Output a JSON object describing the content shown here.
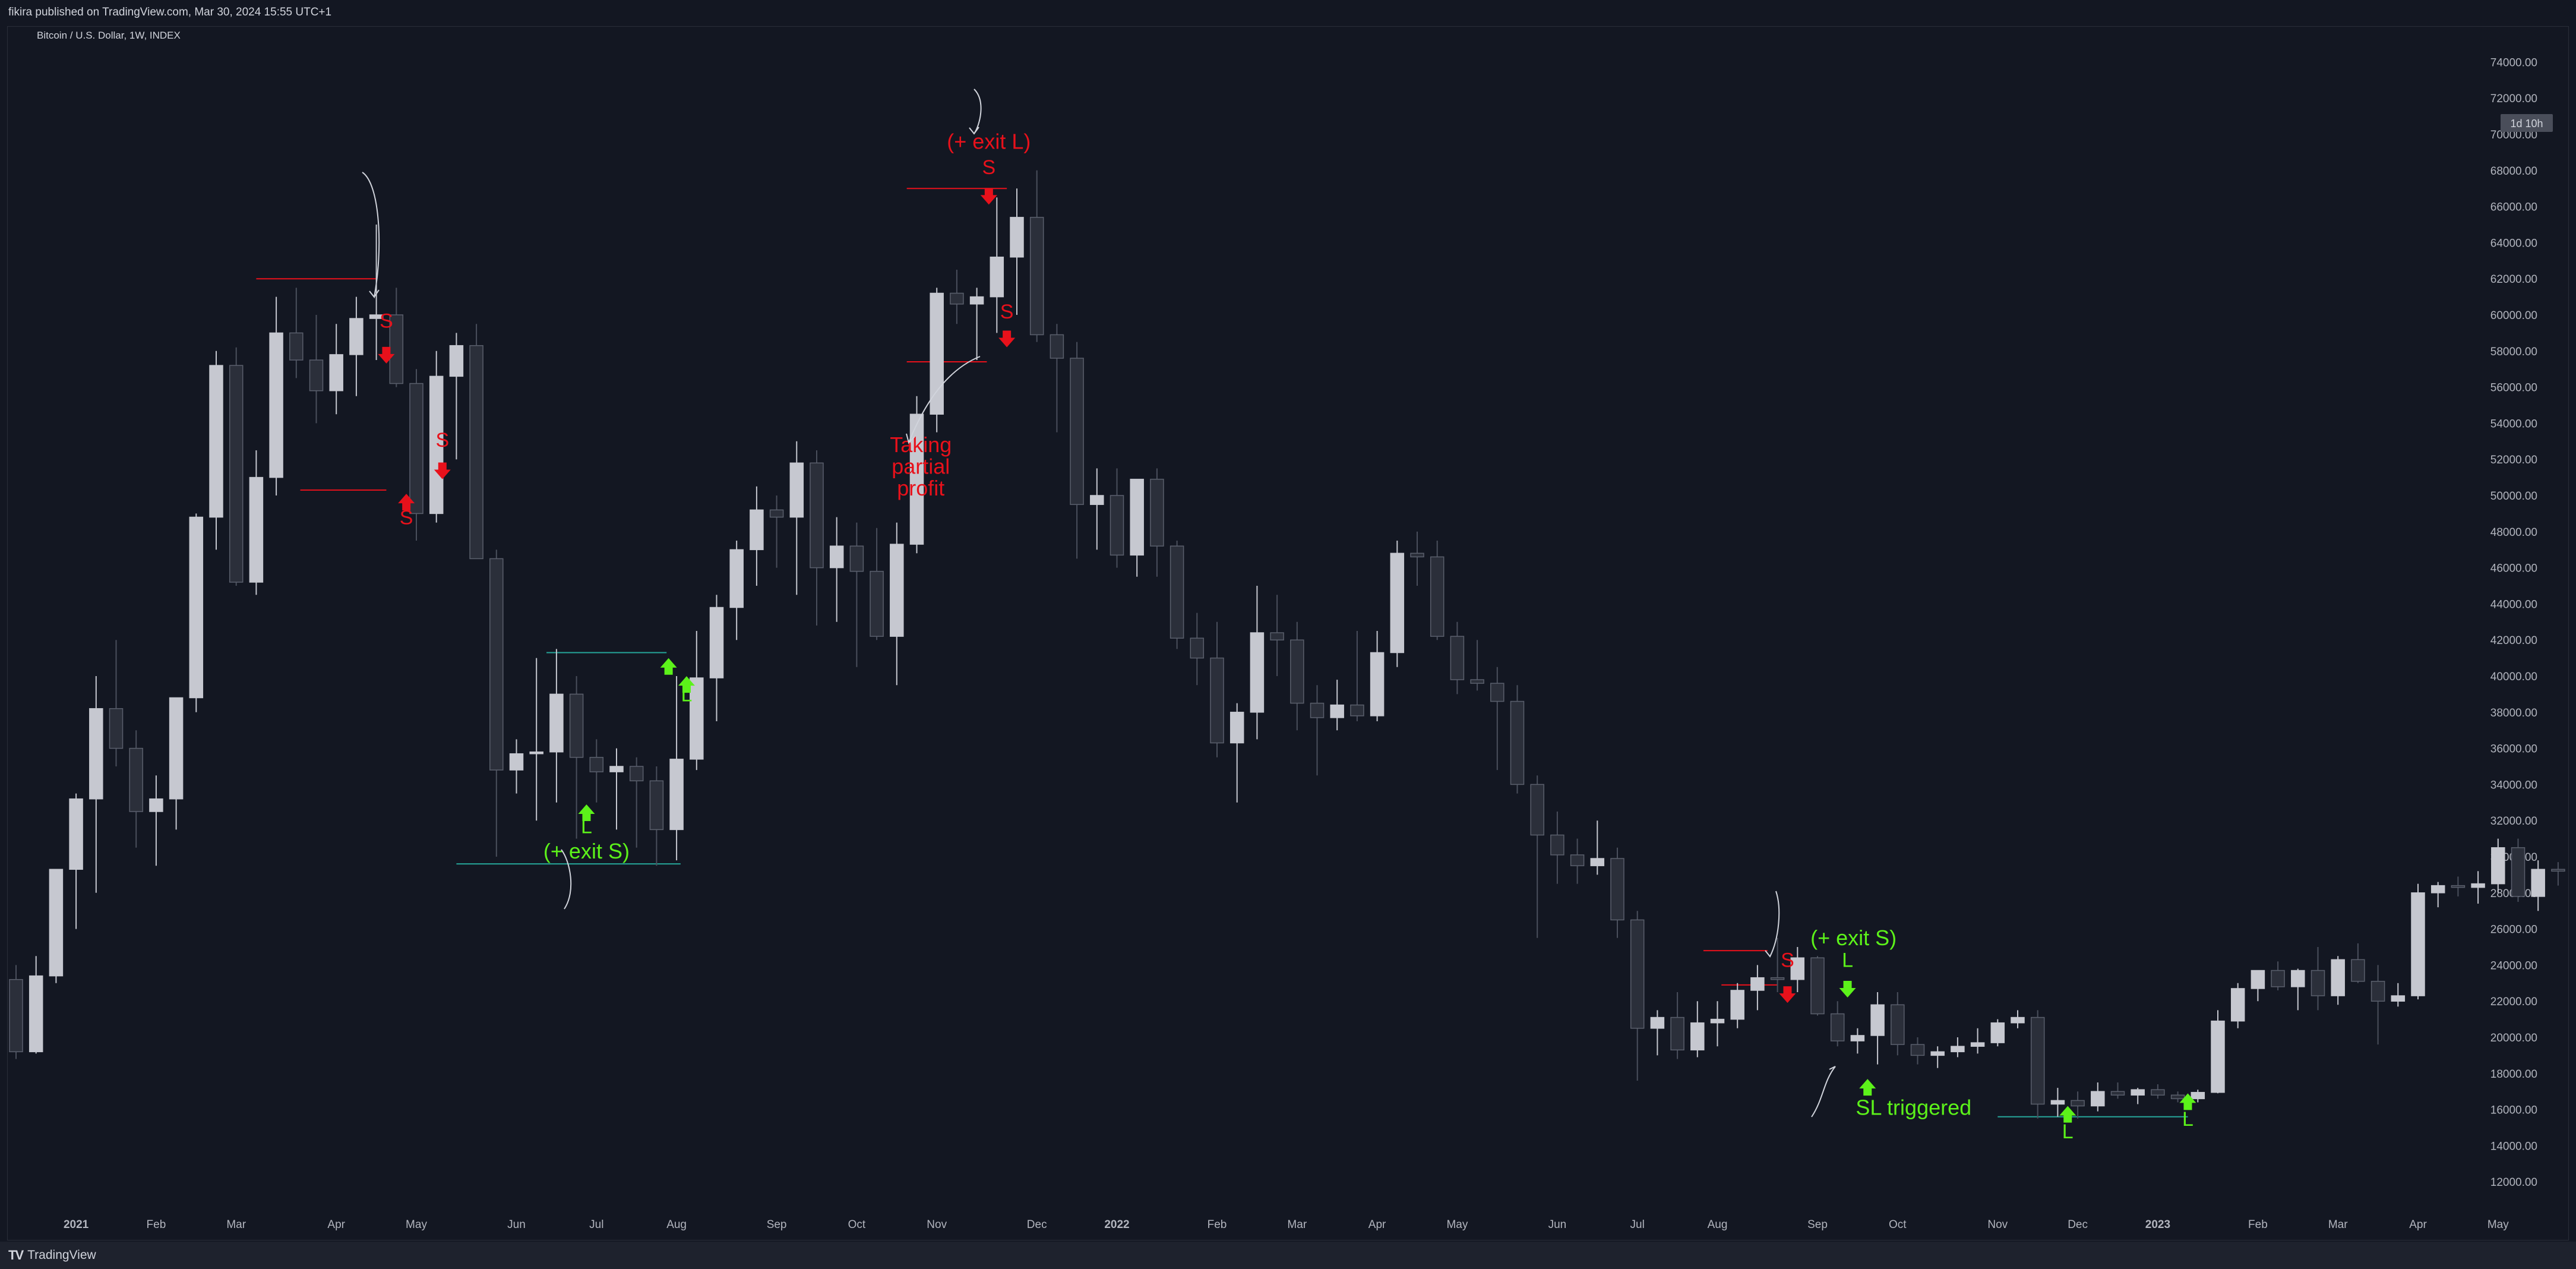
{
  "header": {
    "publish_info": "fikira published on TradingView.com, Mar 30, 2024 15:55 UTC+1"
  },
  "symbol": {
    "title": "Bitcoin / U.S. Dollar, 1W, INDEX"
  },
  "footer": {
    "brand": "TradingView"
  },
  "countdown_badge": "1d 10h",
  "colors": {
    "background": "#131722",
    "up_candle": "#c6c8d0",
    "down_candle": "#2b2f3a",
    "annotation_red": "#e8111b",
    "annotation_green": "#5cf21a"
  },
  "chart_data": {
    "type": "candlestick",
    "timeframe": "1W",
    "y_axis": {
      "min": 11000,
      "max": 75000,
      "ticks": [
        "74000.00",
        "72000.00",
        "70000.00",
        "68000.00",
        "66000.00",
        "64000.00",
        "62000.00",
        "60000.00",
        "58000.00",
        "56000.00",
        "54000.00",
        "52000.00",
        "50000.00",
        "48000.00",
        "46000.00",
        "44000.00",
        "42000.00",
        "40000.00",
        "38000.00",
        "36000.00",
        "34000.00",
        "32000.00",
        "30000.00",
        "28000.00",
        "26000.00",
        "24000.00",
        "22000.00",
        "20000.00",
        "18000.00",
        "16000.00",
        "14000.00",
        "12000.00"
      ]
    },
    "x_axis": {
      "labels": [
        {
          "label": "2021",
          "week": 3
        },
        {
          "label": "Feb",
          "week": 7
        },
        {
          "label": "Mar",
          "week": 11
        },
        {
          "label": "Apr",
          "week": 16
        },
        {
          "label": "May",
          "week": 20
        },
        {
          "label": "Jun",
          "week": 25
        },
        {
          "label": "Jul",
          "week": 29
        },
        {
          "label": "Aug",
          "week": 33
        },
        {
          "label": "Sep",
          "week": 38
        },
        {
          "label": "Oct",
          "week": 42
        },
        {
          "label": "Nov",
          "week": 46
        },
        {
          "label": "Dec",
          "week": 51
        },
        {
          "label": "2022",
          "week": 55
        },
        {
          "label": "Feb",
          "week": 60
        },
        {
          "label": "Mar",
          "week": 64
        },
        {
          "label": "Apr",
          "week": 68
        },
        {
          "label": "May",
          "week": 72
        },
        {
          "label": "Jun",
          "week": 77
        },
        {
          "label": "Jul",
          "week": 81
        },
        {
          "label": "Aug",
          "week": 85
        },
        {
          "label": "Sep",
          "week": 90
        },
        {
          "label": "Oct",
          "week": 94
        },
        {
          "label": "Nov",
          "week": 99
        },
        {
          "label": "Dec",
          "week": 103
        },
        {
          "label": "2023",
          "week": 107
        },
        {
          "label": "Feb",
          "week": 112
        },
        {
          "label": "Mar",
          "week": 116
        },
        {
          "label": "Apr",
          "week": 120
        },
        {
          "label": "May",
          "week": 124
        }
      ]
    },
    "candles": [
      [
        23200,
        24000,
        18800,
        19200
      ],
      [
        19200,
        24500,
        19100,
        23400
      ],
      [
        23400,
        29000,
        23000,
        29300
      ],
      [
        29300,
        33500,
        26000,
        33200
      ],
      [
        33200,
        40000,
        28000,
        38200
      ],
      [
        38200,
        42000,
        35000,
        36000
      ],
      [
        36000,
        37000,
        30500,
        32500
      ],
      [
        32500,
        34500,
        29500,
        33200
      ],
      [
        33200,
        38500,
        31500,
        38800
      ],
      [
        38800,
        49000,
        38000,
        48800
      ],
      [
        48800,
        58000,
        47000,
        57200
      ],
      [
        57200,
        58200,
        45000,
        45200
      ],
      [
        45200,
        52500,
        44500,
        51000
      ],
      [
        51000,
        61000,
        50000,
        59000
      ],
      [
        59000,
        61500,
        56500,
        57500
      ],
      [
        57500,
        60000,
        54000,
        55800
      ],
      [
        55800,
        59500,
        54500,
        57800
      ],
      [
        57800,
        61000,
        55500,
        59800
      ],
      [
        59800,
        65000,
        57500,
        60000
      ],
      [
        60000,
        61500,
        56000,
        56200
      ],
      [
        56200,
        57000,
        47500,
        49000
      ],
      [
        49000,
        58000,
        48500,
        56600
      ],
      [
        56600,
        59000,
        52000,
        58300
      ],
      [
        58300,
        59500,
        46500,
        46500
      ],
      [
        46500,
        47000,
        30000,
        34800
      ],
      [
        34800,
        36500,
        33500,
        35700
      ],
      [
        35700,
        41000,
        32000,
        35800
      ],
      [
        35800,
        41500,
        33000,
        39000
      ],
      [
        39000,
        40000,
        31000,
        35500
      ],
      [
        35500,
        36500,
        33000,
        34700
      ],
      [
        34700,
        36000,
        31500,
        35000
      ],
      [
        35000,
        35500,
        30500,
        34200
      ],
      [
        34200,
        35000,
        29500,
        31500
      ],
      [
        31500,
        40000,
        29800,
        35400
      ],
      [
        35400,
        42500,
        34800,
        39900
      ],
      [
        39900,
        44500,
        37500,
        43800
      ],
      [
        43800,
        47500,
        42000,
        47000
      ],
      [
        47000,
        50500,
        45000,
        49200
      ],
      [
        49200,
        50000,
        46000,
        48800
      ],
      [
        48800,
        53000,
        44500,
        51800
      ],
      [
        51800,
        52500,
        42800,
        46000
      ],
      [
        46000,
        48800,
        43000,
        47200
      ],
      [
        47200,
        48500,
        40500,
        45800
      ],
      [
        45800,
        48200,
        42000,
        42200
      ],
      [
        42200,
        48500,
        39500,
        47300
      ],
      [
        47300,
        55500,
        46800,
        54500
      ],
      [
        54500,
        61500,
        53500,
        61200
      ],
      [
        61200,
        62500,
        59500,
        60600
      ],
      [
        60600,
        61500,
        57500,
        61000
      ],
      [
        61000,
        66500,
        59000,
        63200
      ],
      [
        63200,
        67000,
        60000,
        65400
      ],
      [
        65400,
        68000,
        58500,
        58900
      ],
      [
        58900,
        59500,
        53500,
        57600
      ],
      [
        57600,
        58500,
        46500,
        49500
      ],
      [
        49500,
        51500,
        47000,
        50000
      ],
      [
        50000,
        51500,
        46000,
        46700
      ],
      [
        46700,
        50500,
        45500,
        50900
      ],
      [
        50900,
        51500,
        45500,
        47200
      ],
      [
        47200,
        47500,
        41500,
        42100
      ],
      [
        42100,
        43500,
        39500,
        41000
      ],
      [
        41000,
        43000,
        35500,
        36300
      ],
      [
        36300,
        38500,
        33000,
        38000
      ],
      [
        38000,
        45000,
        36500,
        42400
      ],
      [
        42400,
        44500,
        40000,
        42000
      ],
      [
        42000,
        43000,
        37000,
        38500
      ],
      [
        38500,
        39500,
        34500,
        37700
      ],
      [
        37700,
        39800,
        37000,
        38400
      ],
      [
        38400,
        42500,
        37500,
        37800
      ],
      [
        37800,
        42500,
        37500,
        41300
      ],
      [
        41300,
        47500,
        40500,
        46800
      ],
      [
        46800,
        48000,
        45000,
        46600
      ],
      [
        46600,
        47500,
        42000,
        42200
      ],
      [
        42200,
        43000,
        39000,
        39800
      ],
      [
        39800,
        42000,
        39200,
        39600
      ],
      [
        39600,
        40500,
        34800,
        38600
      ],
      [
        38600,
        39500,
        33500,
        34000
      ],
      [
        34000,
        34500,
        25500,
        31200
      ],
      [
        31200,
        32500,
        28500,
        30100
      ],
      [
        30100,
        31000,
        28500,
        29500
      ],
      [
        29500,
        32000,
        29000,
        29900
      ],
      [
        29900,
        30500,
        25500,
        26500
      ],
      [
        26500,
        27000,
        17600,
        20500
      ],
      [
        20500,
        21500,
        19000,
        21100
      ],
      [
        21100,
        22500,
        18800,
        19300
      ],
      [
        19300,
        22000,
        18900,
        20800
      ],
      [
        20800,
        22000,
        19500,
        21000
      ],
      [
        21000,
        23000,
        20500,
        22600
      ],
      [
        22600,
        24000,
        21500,
        23300
      ],
      [
        23300,
        25500,
        22500,
        23200
      ],
      [
        23200,
        25000,
        22500,
        24400
      ],
      [
        24400,
        24500,
        21200,
        21300
      ],
      [
        21300,
        22000,
        19500,
        19800
      ],
      [
        19800,
        20500,
        19100,
        20100
      ],
      [
        20100,
        22500,
        18500,
        21800
      ],
      [
        21800,
        22500,
        19000,
        19600
      ],
      [
        19600,
        20000,
        18500,
        19000
      ],
      [
        19000,
        19500,
        18300,
        19200
      ],
      [
        19200,
        20000,
        18900,
        19500
      ],
      [
        19500,
        20500,
        19100,
        19700
      ],
      [
        19700,
        21000,
        19500,
        20800
      ],
      [
        20800,
        21500,
        20500,
        21100
      ],
      [
        21100,
        21500,
        15500,
        16300
      ],
      [
        16300,
        17200,
        15600,
        16500
      ],
      [
        16500,
        17000,
        15500,
        16200
      ],
      [
        16200,
        17500,
        15900,
        17000
      ],
      [
        17000,
        17500,
        16600,
        16800
      ],
      [
        16800,
        17200,
        16300,
        17100
      ],
      [
        17100,
        17400,
        16600,
        16800
      ],
      [
        16800,
        17000,
        16400,
        16600
      ],
      [
        16600,
        17100,
        16400,
        16950
      ],
      [
        16950,
        21500,
        16900,
        20900
      ],
      [
        20900,
        23000,
        20500,
        22700
      ],
      [
        22700,
        23500,
        22000,
        23700
      ],
      [
        23700,
        24200,
        22600,
        22800
      ],
      [
        22800,
        23800,
        21500,
        23700
      ],
      [
        23700,
        25000,
        21500,
        22300
      ],
      [
        22300,
        24500,
        21800,
        24300
      ],
      [
        24300,
        25200,
        23000,
        23100
      ],
      [
        23100,
        24000,
        19600,
        22000
      ],
      [
        22000,
        23000,
        21700,
        22300
      ],
      [
        22300,
        28500,
        22100,
        28000
      ],
      [
        28000,
        28600,
        27200,
        28400
      ],
      [
        28400,
        28900,
        27800,
        28300
      ],
      [
        28300,
        29200,
        27400,
        28500
      ],
      [
        28500,
        31000,
        28000,
        30500
      ],
      [
        30500,
        31000,
        27500,
        27800
      ],
      [
        27800,
        29800,
        27000,
        29300
      ],
      [
        29300,
        29700,
        28400,
        29200
      ]
    ],
    "text_annotations": [
      {
        "text": "S",
        "color": "red",
        "week": 18.5,
        "price": 59300
      },
      {
        "text": "S",
        "color": "red",
        "week": 21.3,
        "price": 52700
      },
      {
        "text": "S",
        "color": "red",
        "week": 19.5,
        "price": 48400
      },
      {
        "text": "(+ exit L)",
        "color": "red",
        "week": 48.6,
        "price": 69200
      },
      {
        "text": "S",
        "color": "red",
        "week": 48.6,
        "price": 67800
      },
      {
        "text": "S",
        "color": "red",
        "week": 49.5,
        "price": 59800
      },
      {
        "text": "Taking",
        "color": "red",
        "week": 45.2,
        "price": 52400
      },
      {
        "text": "partial",
        "color": "red",
        "week": 45.2,
        "price": 51200
      },
      {
        "text": "profit",
        "color": "red",
        "week": 45.2,
        "price": 50000
      },
      {
        "text": "L",
        "color": "green",
        "week": 28.5,
        "price": 31300
      },
      {
        "text": "(+ exit S)",
        "color": "green",
        "week": 28.5,
        "price": 29900
      },
      {
        "text": "L",
        "color": "green",
        "week": 33.5,
        "price": 38600
      },
      {
        "text": "S",
        "color": "red",
        "week": 88.5,
        "price": 23900
      },
      {
        "text": "(+ exit S)",
        "color": "green",
        "week": 91.8,
        "price": 25100
      },
      {
        "text": "L",
        "color": "green",
        "week": 91.5,
        "price": 23900
      },
      {
        "text": "SL triggered",
        "color": "green",
        "week": 94.8,
        "price": 15700
      },
      {
        "text": "L",
        "color": "green",
        "week": 102.5,
        "price": 14400
      },
      {
        "text": "L",
        "color": "green",
        "week": 108.5,
        "price": 15100
      }
    ],
    "arrow_markers": [
      {
        "dir": "down",
        "color": "red",
        "week": 18.5,
        "price": 57700
      },
      {
        "dir": "down",
        "color": "red",
        "week": 21.3,
        "price": 51300
      },
      {
        "dir": "up",
        "color": "red",
        "week": 19.5,
        "price": 49700
      },
      {
        "dir": "down",
        "color": "red",
        "week": 48.6,
        "price": 66500
      },
      {
        "dir": "down",
        "color": "red",
        "week": 49.5,
        "price": 58600
      },
      {
        "dir": "up",
        "color": "green",
        "week": 28.5,
        "price": 32500
      },
      {
        "dir": "up",
        "color": "green",
        "week": 32.6,
        "price": 40600
      },
      {
        "dir": "up",
        "color": "green",
        "week": 33.5,
        "price": 39600
      },
      {
        "dir": "down",
        "color": "red",
        "week": 88.5,
        "price": 22300
      },
      {
        "dir": "down",
        "color": "green",
        "week": 91.5,
        "price": 22600
      },
      {
        "dir": "up",
        "color": "green",
        "week": 92.5,
        "price": 17300
      },
      {
        "dir": "up",
        "color": "green",
        "week": 102.5,
        "price": 15800
      },
      {
        "dir": "up",
        "color": "green",
        "week": 108.5,
        "price": 16500
      }
    ],
    "level_lines": [
      {
        "color": "#e8111b",
        "w0": 12,
        "w1": 18,
        "price": 62000
      },
      {
        "color": "#e8111b",
        "w0": 14.2,
        "w1": 18.5,
        "price": 50300
      },
      {
        "color": "#26a69a",
        "w0": 22,
        "w1": 33.2,
        "price": 29600
      },
      {
        "color": "#26a69a",
        "w0": 26.5,
        "w1": 32.5,
        "price": 41300
      },
      {
        "color": "#e8111b",
        "w0": 44.5,
        "w1": 49.5,
        "price": 67000
      },
      {
        "color": "#e8111b",
        "w0": 44.5,
        "w1": 48.5,
        "price": 57400
      },
      {
        "color": "#e8111b",
        "w0": 84.3,
        "w1": 87.5,
        "price": 24800
      },
      {
        "color": "#e8111b",
        "w0": 85.2,
        "w1": 88,
        "price": 22900
      },
      {
        "color": "#26a69a",
        "w0": 99,
        "w1": 108.5,
        "price": 15600
      }
    ]
  }
}
